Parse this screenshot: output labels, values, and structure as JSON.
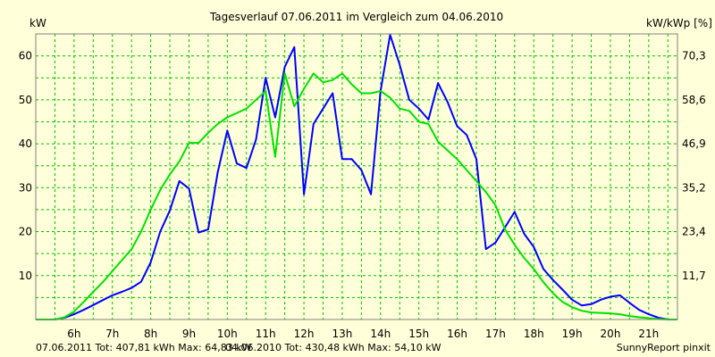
{
  "chart_data": {
    "type": "line",
    "title": "Tagesverlauf 07.06.2011 im Vergleich zum 04.06.2010",
    "ylabel": "kW",
    "y2label": "kW/kWp [%]",
    "xlabel": "",
    "ylim": [
      0,
      65
    ],
    "y2lim": [
      0,
      76.1
    ],
    "xlim": [
      5.0,
      21.75
    ],
    "grid": true,
    "yticks": [
      10,
      20,
      30,
      40,
      50,
      60
    ],
    "y2ticks": [
      "11,7",
      "23,4",
      "35,2",
      "46,9",
      "58,6",
      "70,3"
    ],
    "xticks": [
      "6h",
      "7h",
      "8h",
      "9h",
      "10h",
      "11h",
      "12h",
      "13h",
      "14h",
      "15h",
      "16h",
      "17h",
      "18h",
      "19h",
      "20h",
      "21h"
    ],
    "series": [
      {
        "name": "07.06.2011 Tot: 407,81 kWh Max: 64,83 kW",
        "color": "#0000ff",
        "x": [
          5.0,
          5.25,
          5.5,
          5.75,
          6.0,
          6.25,
          6.5,
          6.75,
          7.0,
          7.25,
          7.5,
          7.75,
          8.0,
          8.25,
          8.5,
          8.75,
          9.0,
          9.25,
          9.5,
          9.75,
          10.0,
          10.25,
          10.5,
          10.75,
          11.0,
          11.25,
          11.5,
          11.75,
          12.0,
          12.25,
          12.5,
          12.75,
          13.0,
          13.25,
          13.5,
          13.75,
          14.0,
          14.25,
          14.5,
          14.75,
          15.0,
          15.25,
          15.5,
          15.75,
          16.0,
          16.25,
          16.5,
          16.75,
          17.0,
          17.25,
          17.5,
          17.75,
          18.0,
          18.25,
          18.5,
          18.75,
          19.0,
          19.25,
          19.5,
          19.75,
          20.0,
          20.25,
          20.5,
          20.75,
          21.0,
          21.25,
          21.5,
          21.75
        ],
        "values": [
          0,
          0,
          0,
          0.4,
          1.2,
          2.2,
          3.3,
          4.4,
          5.5,
          6.3,
          7.2,
          8.6,
          13,
          20,
          24.8,
          31.5,
          29.8,
          19.8,
          20.5,
          33.5,
          43,
          35.5,
          34.5,
          41,
          55,
          46,
          57.5,
          62,
          28.5,
          44.5,
          48,
          51.5,
          36.5,
          36.5,
          34,
          28.5,
          52,
          64.8,
          58,
          50,
          48,
          45.5,
          53.8,
          49.5,
          44,
          42,
          36.5,
          16,
          17.5,
          21,
          24.5,
          19.5,
          16.5,
          11.5,
          9,
          6.8,
          4.5,
          3.2,
          3.5,
          4.5,
          5.2,
          5.5,
          3.8,
          2.2,
          1.2,
          0.4,
          0,
          0
        ]
      },
      {
        "name": "04.06.2010 Tot: 430,48 kWh Max: 54,10 kW",
        "color": "#00e000",
        "x": [
          5.0,
          5.25,
          5.5,
          5.75,
          6.0,
          6.25,
          6.5,
          6.75,
          7.0,
          7.25,
          7.5,
          7.75,
          8.0,
          8.25,
          8.5,
          8.75,
          9.0,
          9.25,
          9.5,
          9.75,
          10.0,
          10.25,
          10.5,
          10.75,
          11.0,
          11.25,
          11.5,
          11.75,
          12.0,
          12.25,
          12.5,
          12.75,
          13.0,
          13.25,
          13.5,
          13.75,
          14.0,
          14.25,
          14.5,
          14.75,
          15.0,
          15.25,
          15.5,
          15.75,
          16.0,
          16.25,
          16.5,
          16.75,
          17.0,
          17.25,
          17.5,
          17.75,
          18.0,
          18.25,
          18.5,
          18.75,
          19.0,
          19.25,
          19.5,
          19.75,
          20.0,
          20.25,
          20.5,
          20.75,
          21.0,
          21.25,
          21.5,
          21.75
        ],
        "values": [
          0,
          0,
          0,
          0.5,
          1.8,
          4,
          6.3,
          8.5,
          11,
          13.5,
          16,
          20,
          25,
          29.5,
          33,
          36,
          40.2,
          40.2,
          42.5,
          44.5,
          46,
          47,
          48,
          50,
          52,
          37,
          56,
          48.5,
          52.5,
          56,
          54,
          54.5,
          56,
          53.5,
          51.5,
          51.5,
          52,
          50.5,
          48,
          47.5,
          45,
          44.5,
          40.5,
          38.5,
          36.5,
          34,
          31.5,
          29,
          26,
          20.5,
          17,
          14,
          11.5,
          8.5,
          6,
          4,
          2.8,
          2,
          1.6,
          1.5,
          1.4,
          1.2,
          0.8,
          0.5,
          0.3,
          0.1,
          0,
          0
        ]
      }
    ],
    "legend_position": "bottom-left",
    "footer_right": "SunnyReport pinxit",
    "background_color": "#ffffd9",
    "grid_color": "#00c000"
  }
}
